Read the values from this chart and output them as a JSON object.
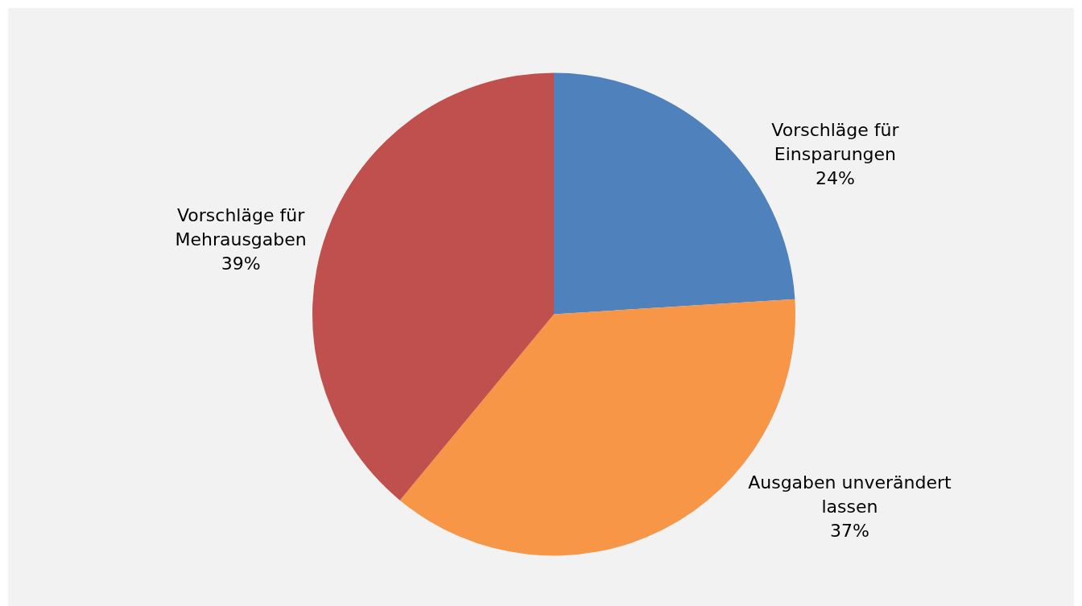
{
  "chart_data": {
    "type": "pie",
    "categories": [
      "Vorschläge für Einsparungen",
      "Ausgaben unverändert lassen",
      "Vorschläge für Mehrausgaben"
    ],
    "values": [
      24,
      37,
      39
    ],
    "colors": [
      "#4f81bd",
      "#f79646",
      "#c0504d"
    ],
    "value_labels": [
      "24%",
      "37%",
      "39%"
    ],
    "legend": false
  }
}
